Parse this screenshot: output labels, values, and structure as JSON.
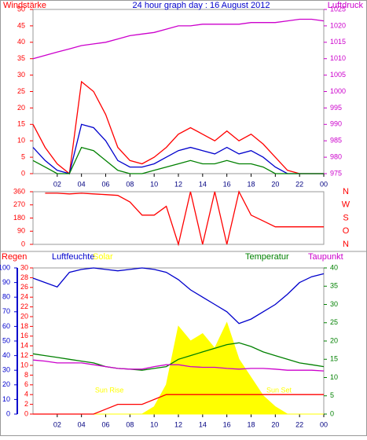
{
  "chart_data": [
    {
      "type": "line",
      "title": "24 hour graph day : 16 August 2012",
      "y_label": "Windstärke",
      "y2_label": "Luftdruck",
      "axis_colors": {
        "y": "#ff0000",
        "y2": "#cc00cc"
      },
      "x": [
        0,
        1,
        2,
        3,
        4,
        5,
        6,
        7,
        8,
        9,
        10,
        11,
        12,
        13,
        14,
        15,
        16,
        17,
        18,
        19,
        20,
        21,
        22,
        23,
        24
      ],
      "xlim": [
        0,
        24
      ],
      "xticks": [
        {
          "value": 2,
          "label": "02"
        },
        {
          "value": 4,
          "label": "04"
        },
        {
          "value": 6,
          "label": "06"
        },
        {
          "value": 8,
          "label": "08"
        },
        10,
        12,
        14,
        16,
        18,
        20,
        22,
        {
          "value": 24,
          "label": "00"
        }
      ],
      "ylim": [
        0,
        50
      ],
      "yticks": [
        0,
        5,
        10,
        15,
        20,
        25,
        30,
        35,
        40,
        45,
        50
      ],
      "y2lim": [
        975,
        1025
      ],
      "y2ticks": [
        975,
        980,
        985,
        990,
        995,
        1000,
        1005,
        1010,
        1015,
        1020,
        1025
      ],
      "series": [
        {
          "color": "#ff0000",
          "values": [
            15,
            8,
            3,
            0,
            28,
            25,
            18,
            8,
            4,
            3,
            5,
            8,
            12,
            14,
            12,
            10,
            13,
            10,
            12,
            9,
            5,
            1,
            0,
            0,
            0
          ]
        },
        {
          "color": "#0000cc",
          "values": [
            8,
            4,
            1,
            0,
            15,
            14,
            10,
            4,
            2,
            2,
            3,
            5,
            7,
            8,
            7,
            6,
            8,
            6,
            7,
            5,
            2,
            0,
            0,
            0,
            0
          ]
        },
        {
          "color": "#008000",
          "values": [
            4,
            2,
            0,
            0,
            8,
            7,
            4,
            1,
            0,
            0,
            1,
            2,
            3,
            4,
            3,
            3,
            4,
            3,
            3,
            2,
            0,
            0,
            0,
            0,
            0
          ]
        },
        {
          "color": "#cc00cc",
          "axis": "y2",
          "values": [
            1010,
            1011,
            1012,
            1013,
            1014,
            1014.5,
            1015,
            1016,
            1017,
            1017.5,
            1018,
            1019,
            1020,
            1020,
            1020.5,
            1020.5,
            1020.5,
            1020.5,
            1021,
            1021,
            1021,
            1021.5,
            1022,
            1022,
            1021.5
          ]
        }
      ]
    },
    {
      "type": "line",
      "axis_colors": {
        "y": "#ff0000"
      },
      "x": [
        0,
        1,
        2,
        3,
        4,
        5,
        6,
        7,
        8,
        9,
        10,
        11,
        12,
        13,
        14,
        15,
        16,
        17,
        18,
        19,
        20,
        21,
        22,
        23,
        24
      ],
      "xlim": [
        0,
        24
      ],
      "ylim": [
        0,
        360
      ],
      "yticks": [
        0,
        90,
        180,
        270,
        360
      ],
      "right_labels": [
        "N",
        "W",
        "S",
        "O",
        "N"
      ],
      "series": [
        {
          "color": "#ff0000",
          "values": [
            null,
            350,
            350,
            345,
            350,
            345,
            340,
            335,
            290,
            200,
            200,
            260,
            0,
            360,
            0,
            360,
            0,
            360,
            200,
            160,
            120,
            120,
            120,
            120,
            120
          ]
        }
      ]
    },
    {
      "type": "line",
      "annotations": [
        "Sun Rise",
        "Sun Set"
      ],
      "axis_colors": {
        "y": "#0000cc",
        "y2": "#008000",
        "y3": "#ff0000"
      },
      "x": [
        0,
        1,
        2,
        3,
        4,
        5,
        6,
        7,
        8,
        9,
        10,
        11,
        12,
        13,
        14,
        15,
        16,
        17,
        18,
        19,
        20,
        21,
        22,
        23,
        24
      ],
      "xlim": [
        0,
        24
      ],
      "xticks": [
        {
          "value": 2,
          "label": "02"
        },
        {
          "value": 4,
          "label": "04"
        },
        {
          "value": 6,
          "label": "06"
        },
        {
          "value": 8,
          "label": "08"
        },
        10,
        12,
        14,
        16,
        18,
        20,
        22,
        {
          "value": 24,
          "label": "00"
        }
      ],
      "ylim": [
        0,
        100
      ],
      "yticks": [
        0,
        10,
        20,
        30,
        40,
        50,
        60,
        70,
        80,
        90,
        100
      ],
      "y2lim": [
        0,
        40
      ],
      "y2ticks": [
        0,
        5,
        10,
        15,
        20,
        25,
        30,
        35,
        40
      ],
      "y3lim": [
        0,
        30
      ],
      "y3ticks": [
        0,
        2,
        4,
        6,
        8,
        10,
        12,
        14,
        16,
        18,
        20,
        22,
        24,
        26,
        28,
        30
      ],
      "series": [
        {
          "name": "Regen",
          "color": "#ff0000",
          "axis": "y3",
          "values": [
            0,
            0,
            0,
            0,
            0,
            0,
            1,
            2,
            2,
            2,
            3,
            4,
            4,
            4,
            4,
            4,
            4,
            4,
            4,
            4,
            4,
            4,
            4,
            4,
            4
          ]
        },
        {
          "name": "Luftfeuchte",
          "color": "#0000cc",
          "values": [
            93,
            90,
            87,
            97,
            99,
            100,
            99,
            98,
            99,
            100,
            99,
            97,
            92,
            85,
            80,
            75,
            70,
            62,
            65,
            70,
            75,
            82,
            90,
            94,
            96
          ]
        },
        {
          "name": "Solar",
          "color": "#ffff00",
          "axis": "y2",
          "fill": true,
          "values": [
            0,
            0,
            0,
            0,
            0,
            0,
            0,
            0,
            0,
            0,
            2,
            8,
            24,
            20,
            22,
            18,
            25,
            15,
            10,
            5,
            2,
            0,
            0,
            0,
            0
          ]
        },
        {
          "name": "Temperatur",
          "color": "#008000",
          "axis": "y2",
          "values": [
            16.5,
            16,
            15.5,
            15,
            14.5,
            14,
            13,
            12.5,
            12.3,
            12,
            12.5,
            13,
            15,
            16,
            17,
            18,
            19,
            19.5,
            18.5,
            17,
            16,
            15,
            14,
            13.5,
            13
          ]
        },
        {
          "name": "Taupunkt",
          "color": "#cc00cc",
          "axis": "y2",
          "values": [
            14.8,
            14.5,
            14,
            14,
            14,
            13.5,
            13,
            12.5,
            12.3,
            12.3,
            13,
            13.5,
            13.5,
            13,
            12.8,
            12.8,
            12.5,
            12.3,
            12.5,
            12.5,
            12.3,
            12,
            12,
            12,
            11.8
          ]
        }
      ]
    }
  ]
}
